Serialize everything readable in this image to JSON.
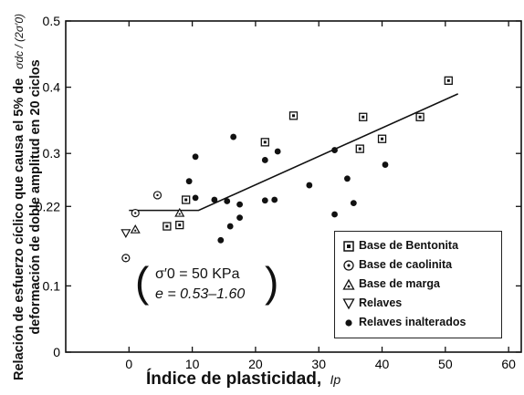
{
  "chart_data": {
    "type": "scatter",
    "xlabel": "Índice de plasticidad",
    "xlabel_symbol": "Ip",
    "ylabel_line1": "Relación de esfuerzo cíclico que causa el 5% de",
    "ylabel_line2": "deformación de doble amplitud en 20 ciclos",
    "ylabel_symbol": "σdc / (2σ′0)",
    "xlim": [
      -10,
      62
    ],
    "ylim": [
      0,
      0.5
    ],
    "x_ticks": [
      0,
      10,
      20,
      30,
      40,
      50,
      60
    ],
    "x_tick_labels": [
      "0",
      "10",
      "20",
      "30",
      "40",
      "50",
      "60"
    ],
    "y_ticks": [
      0,
      0.1,
      0.22,
      0.3,
      0.4,
      0.5
    ],
    "y_tick_labels": [
      "0",
      "0.1",
      "0.22",
      "0.3",
      "0.4",
      "0.5"
    ],
    "annotation_line1": "σ′0 = 50 KPa",
    "annotation_line2": "e = 0.53–1.60",
    "legend_position": "bottom-right",
    "trend_line": {
      "x": [
        0,
        11,
        52
      ],
      "y": [
        0.214,
        0.214,
        0.39
      ]
    },
    "series": [
      {
        "name": "Base de Bentonita",
        "marker": "square-dot",
        "x": [
          6,
          8,
          9,
          21.5,
          26,
          36.5,
          37,
          40,
          46,
          50.5
        ],
        "y": [
          0.19,
          0.192,
          0.23,
          0.317,
          0.357,
          0.307,
          0.355,
          0.322,
          0.355,
          0.41
        ]
      },
      {
        "name": "Base de caolinita",
        "marker": "circle-dot",
        "x": [
          -0.5,
          1,
          4.5
        ],
        "y": [
          0.142,
          0.21,
          0.237
        ]
      },
      {
        "name": "Base de marga",
        "marker": "triangle-up",
        "x": [
          1,
          8
        ],
        "y": [
          0.185,
          0.21
        ]
      },
      {
        "name": "Relaves",
        "marker": "triangle-down",
        "x": [
          -0.5
        ],
        "y": [
          0.18
        ]
      },
      {
        "name": "Relaves inalterados",
        "marker": "filled-circle",
        "x": [
          9.5,
          10.5,
          10.5,
          13.5,
          14.5,
          15.5,
          16,
          16.5,
          17.5,
          17.5,
          21.5,
          21.5,
          23,
          23.5,
          28.5,
          32.5,
          32.5,
          34.5,
          35.5,
          40.5
        ],
        "y": [
          0.258,
          0.233,
          0.295,
          0.23,
          0.169,
          0.228,
          0.19,
          0.325,
          0.223,
          0.203,
          0.229,
          0.29,
          0.23,
          0.303,
          0.252,
          0.305,
          0.208,
          0.262,
          0.225,
          0.283
        ]
      }
    ]
  },
  "legend": {
    "bentonita": "Base de Bentonita",
    "caolinita": "Base de caolinita",
    "marga": "Base de marga",
    "relaves": "Relaves",
    "inalterados": "Relaves inalterados"
  }
}
